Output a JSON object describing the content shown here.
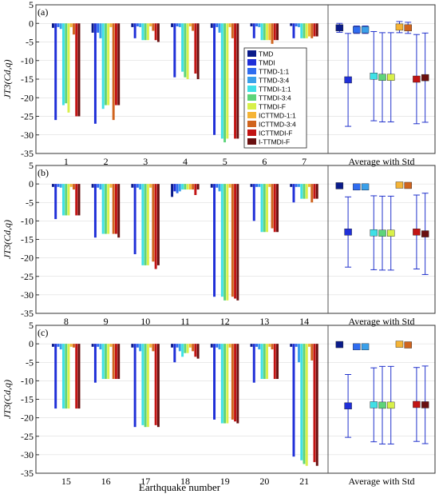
{
  "chart_data": [
    {
      "type": "bar",
      "panel_label": "(a)",
      "ylabel": "JT3(Cd,q)",
      "ylim": [
        -35,
        5
      ],
      "yticks": [
        5,
        0,
        -5,
        -10,
        -15,
        -20,
        -25,
        -30,
        -35
      ],
      "categories": [
        "1",
        "2",
        "3",
        "4",
        "5",
        "6",
        "7"
      ],
      "series": [
        {
          "name": "TMD",
          "values": [
            -1.2,
            -2.5,
            -1.0,
            -1.0,
            -1.2,
            -0.8,
            -0.7
          ]
        },
        {
          "name": "TMDI",
          "values": [
            -26.0,
            -27.0,
            -4.0,
            -14.5,
            -30.0,
            -4.0,
            -4.0
          ]
        },
        {
          "name": "TTMD-1:1",
          "values": [
            -1.0,
            -2.5,
            -0.8,
            -0.8,
            -1.0,
            -0.8,
            -0.8
          ]
        },
        {
          "name": "TTMD-3:4",
          "values": [
            -1.5,
            -4.0,
            -1.0,
            -1.0,
            -2.5,
            -1.0,
            -1.0
          ]
        },
        {
          "name": "TTMDI-1:1",
          "values": [
            -22.0,
            -23.0,
            -4.5,
            -13.0,
            -31.0,
            -4.5,
            -4.0
          ]
        },
        {
          "name": "TTMDI-3:4",
          "values": [
            -21.5,
            -22.0,
            -4.5,
            -14.5,
            -32.0,
            -4.5,
            -4.0
          ]
        },
        {
          "name": "TTMDI-F",
          "values": [
            -24.0,
            -22.0,
            -4.5,
            -15.0,
            -31.0,
            -4.5,
            -4.0
          ]
        },
        {
          "name": "ICTTMD-1:1",
          "values": [
            -1.0,
            -1.0,
            -0.8,
            -0.8,
            -1.0,
            -4.5,
            -3.5
          ]
        },
        {
          "name": "ICTTMD-3:4",
          "values": [
            -3.0,
            -26.0,
            -2.0,
            -2.0,
            -4.0,
            -5.5,
            -4.0
          ]
        },
        {
          "name": "ICTTMDI-F",
          "values": [
            -25.0,
            -22.0,
            -4.5,
            -13.5,
            -31.0,
            -4.5,
            -3.5
          ]
        },
        {
          "name": "I-TTMDI-F",
          "values": [
            -25.0,
            -22.0,
            -5.0,
            -15.0,
            -31.0,
            -4.5,
            -3.5
          ]
        }
      ],
      "average_with_std": [
        {
          "mean": -1.2,
          "std": 1.2
        },
        {
          "mean": -15.2,
          "std": 12.5
        },
        {
          "mean": -1.7,
          "std": 1.0
        },
        {
          "mean": -1.7,
          "std": 1.0
        },
        {
          "mean": -14.2,
          "std": 12.0
        },
        {
          "mean": -14.5,
          "std": 12.0
        },
        {
          "mean": -14.5,
          "std": 12.0
        },
        {
          "mean": -1.0,
          "std": 1.5
        },
        {
          "mean": -1.2,
          "std": 1.5
        },
        {
          "mean": -15.0,
          "std": 12.0
        },
        {
          "mean": -14.6,
          "std": 12.0
        }
      ],
      "average_label": "Average with Std"
    },
    {
      "type": "bar",
      "panel_label": "(b)",
      "ylabel": "JT3(Cd,q)",
      "ylim": [
        -35,
        5
      ],
      "yticks": [
        5,
        0,
        -5,
        -10,
        -15,
        -20,
        -25,
        -30,
        -35
      ],
      "categories": [
        "8",
        "9",
        "10",
        "11",
        "12",
        "13",
        "14"
      ],
      "series": [
        {
          "name": "TMD",
          "values": [
            -0.8,
            -1.0,
            -1.0,
            -3.5,
            -1.0,
            -0.8,
            -0.8
          ]
        },
        {
          "name": "TMDI",
          "values": [
            -9.5,
            -14.5,
            -19.0,
            -2.0,
            -30.5,
            -10.0,
            -5.0
          ]
        },
        {
          "name": "TTMD-1:1",
          "values": [
            -0.8,
            -1.0,
            -1.0,
            -2.5,
            -1.0,
            -0.8,
            -0.8
          ]
        },
        {
          "name": "TTMD-3:4",
          "values": [
            -1.0,
            -1.5,
            -1.5,
            -2.0,
            -2.0,
            -0.8,
            -0.8
          ]
        },
        {
          "name": "TTMDI-1:1",
          "values": [
            -8.5,
            -13.5,
            -22.0,
            -1.5,
            -30.5,
            -13.0,
            -4.0
          ]
        },
        {
          "name": "TTMDI-3:4",
          "values": [
            -8.5,
            -13.5,
            -22.0,
            -1.5,
            -31.5,
            -13.0,
            -4.0
          ]
        },
        {
          "name": "TTMDI-F",
          "values": [
            -8.5,
            -13.5,
            -22.0,
            -1.5,
            -31.5,
            -13.0,
            -4.0
          ]
        },
        {
          "name": "ICTTMD-1:1",
          "values": [
            -0.8,
            -1.0,
            -1.0,
            -1.5,
            -1.0,
            -0.8,
            -0.8
          ]
        },
        {
          "name": "ICTTMD-3:4",
          "values": [
            -1.5,
            -13.5,
            -21.0,
            -1.5,
            -30.5,
            -12.0,
            -5.0
          ]
        },
        {
          "name": "ICTTMDI-F",
          "values": [
            -8.5,
            -13.5,
            -23.0,
            -3.0,
            -31.0,
            -13.0,
            -4.0
          ]
        },
        {
          "name": "I-TTMDI-F",
          "values": [
            -8.5,
            -14.5,
            -22.0,
            -1.5,
            -31.5,
            -13.0,
            -4.0
          ]
        }
      ],
      "average_with_std": [
        {
          "mean": -0.5,
          "std": 0.6
        },
        {
          "mean": -13.0,
          "std": 9.5
        },
        {
          "mean": -0.8,
          "std": 0.8
        },
        {
          "mean": -0.8,
          "std": 0.8
        },
        {
          "mean": -13.2,
          "std": 10.0
        },
        {
          "mean": -13.3,
          "std": 10.0
        },
        {
          "mean": -13.3,
          "std": 10.0
        },
        {
          "mean": -0.3,
          "std": 0.4
        },
        {
          "mean": -0.4,
          "std": 0.5
        },
        {
          "mean": -13.0,
          "std": 10.0
        },
        {
          "mean": -13.5,
          "std": 11.0
        }
      ],
      "average_label": "Average with Std"
    },
    {
      "type": "bar",
      "panel_label": "(c)",
      "ylabel": "JT3(Cd,q)",
      "ylim": [
        -35,
        5
      ],
      "yticks": [
        5,
        0,
        -5,
        -10,
        -15,
        -20,
        -25,
        -30,
        -35
      ],
      "categories": [
        "15",
        "16",
        "17",
        "18",
        "19",
        "20",
        "21"
      ],
      "series": [
        {
          "name": "TMD",
          "values": [
            -0.8,
            -0.8,
            -1.0,
            -1.0,
            -1.0,
            -0.8,
            -0.8
          ]
        },
        {
          "name": "TMDI",
          "values": [
            -17.5,
            -10.5,
            -22.5,
            -5.0,
            -20.5,
            -10.5,
            -30.5
          ]
        },
        {
          "name": "TTMD-1:1",
          "values": [
            -0.8,
            -0.8,
            -1.0,
            -1.0,
            -1.0,
            -0.8,
            -0.8
          ]
        },
        {
          "name": "TTMD-3:4",
          "values": [
            -1.5,
            -1.5,
            -2.0,
            -2.0,
            -1.5,
            -1.5,
            -5.0
          ]
        },
        {
          "name": "TTMDI-1:1",
          "values": [
            -17.5,
            -9.5,
            -22.0,
            -3.5,
            -21.5,
            -9.5,
            -31.5
          ]
        },
        {
          "name": "TTMDI-3:4",
          "values": [
            -17.5,
            -9.5,
            -22.5,
            -2.5,
            -21.5,
            -9.5,
            -32.5
          ]
        },
        {
          "name": "TTMDI-F",
          "values": [
            -17.5,
            -9.5,
            -22.5,
            -2.5,
            -21.5,
            -9.5,
            -33.0
          ]
        },
        {
          "name": "ICTTMD-1:1",
          "values": [
            -0.8,
            -0.8,
            -1.0,
            -1.0,
            -1.0,
            -0.8,
            -0.8
          ]
        },
        {
          "name": "ICTTMD-3:4",
          "values": [
            -1.0,
            -9.5,
            -2.0,
            -2.0,
            -20.5,
            -1.5,
            -4.5
          ]
        },
        {
          "name": "ICTTMDI-F",
          "values": [
            -17.5,
            -9.5,
            -22.0,
            -3.5,
            -21.0,
            -9.5,
            -32.0
          ]
        },
        {
          "name": "I-TTMDI-F",
          "values": [
            -17.5,
            -9.5,
            -22.5,
            -4.0,
            -21.5,
            -9.5,
            -33.0
          ]
        }
      ],
      "average_with_std": [
        {
          "mean": -0.2,
          "std": 0.3
        },
        {
          "mean": -16.8,
          "std": 8.5
        },
        {
          "mean": -0.8,
          "std": 0.6
        },
        {
          "mean": -0.8,
          "std": 0.6
        },
        {
          "mean": -16.5,
          "std": 10.0
        },
        {
          "mean": -16.6,
          "std": 10.5
        },
        {
          "mean": -16.6,
          "std": 10.5
        },
        {
          "mean": -0.1,
          "std": 0.2
        },
        {
          "mean": -0.3,
          "std": 0.3
        },
        {
          "mean": -16.4,
          "std": 10.0
        },
        {
          "mean": -16.5,
          "std": 10.5
        }
      ],
      "average_label": "Average with Std"
    }
  ],
  "legend": {
    "placement": "top-right of panel (a)",
    "entries": [
      "TMD",
      "TMDI",
      "TTMD-1:1",
      "TTMD-3:4",
      "TTMDI-1:1",
      "TTMDI-3:4",
      "TTMDI-F",
      "ICTTMD-1:1",
      "ICTTMD-3:4",
      "ICTTMDI-F",
      "I-TTMDI-F"
    ]
  },
  "series_colors": [
    "#0a1b8a",
    "#1f2fd8",
    "#2f6cf0",
    "#3aa0ea",
    "#3fe0e6",
    "#5ed47a",
    "#d8f04a",
    "#f5b436",
    "#d0641e",
    "#c21414",
    "#6a1010"
  ],
  "xlabel": "Earthquake number",
  "grid": true
}
